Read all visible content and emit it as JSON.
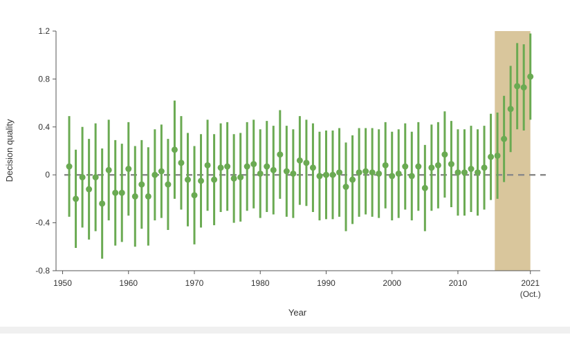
{
  "chart_data": {
    "type": "errorbar",
    "x_label": "Year",
    "y_label": "Decision quality",
    "x": [
      1951,
      1952,
      1953,
      1954,
      1955,
      1956,
      1957,
      1958,
      1959,
      1960,
      1961,
      1962,
      1963,
      1964,
      1965,
      1966,
      1967,
      1968,
      1969,
      1970,
      1971,
      1972,
      1973,
      1974,
      1975,
      1976,
      1977,
      1978,
      1979,
      1980,
      1981,
      1982,
      1983,
      1984,
      1985,
      1986,
      1987,
      1988,
      1989,
      1990,
      1991,
      1992,
      1993,
      1994,
      1995,
      1996,
      1997,
      1998,
      1999,
      2000,
      2001,
      2002,
      2003,
      2004,
      2005,
      2006,
      2007,
      2008,
      2009,
      2010,
      2011,
      2012,
      2013,
      2014,
      2015,
      2016,
      2017,
      2018,
      2019,
      2020,
      2021
    ],
    "values": [
      0.07,
      -0.2,
      -0.02,
      -0.12,
      -0.02,
      -0.24,
      0.04,
      -0.15,
      -0.15,
      0.05,
      -0.18,
      -0.08,
      -0.18,
      0.0,
      0.03,
      -0.08,
      0.21,
      0.1,
      -0.04,
      -0.17,
      -0.05,
      0.08,
      -0.04,
      0.06,
      0.07,
      -0.03,
      -0.02,
      0.07,
      0.09,
      0.01,
      0.07,
      0.04,
      0.17,
      0.03,
      0.01,
      0.12,
      0.1,
      0.06,
      -0.01,
      0.0,
      0.0,
      0.02,
      -0.1,
      -0.04,
      0.02,
      0.03,
      0.02,
      0.01,
      0.08,
      -0.01,
      0.01,
      0.07,
      -0.01,
      0.07,
      -0.11,
      0.06,
      0.08,
      0.17,
      0.09,
      0.02,
      0.02,
      0.05,
      0.02,
      0.06,
      0.15,
      0.16,
      0.3,
      0.55,
      0.74,
      0.73,
      0.82
    ],
    "errors": [
      0.42,
      0.41,
      0.42,
      0.42,
      0.45,
      0.46,
      0.42,
      0.44,
      0.41,
      0.39,
      0.42,
      0.37,
      0.41,
      0.38,
      0.39,
      0.38,
      0.41,
      0.39,
      0.39,
      0.41,
      0.39,
      0.38,
      0.38,
      0.37,
      0.37,
      0.37,
      0.37,
      0.37,
      0.37,
      0.37,
      0.38,
      0.37,
      0.37,
      0.38,
      0.37,
      0.37,
      0.36,
      0.37,
      0.37,
      0.37,
      0.37,
      0.37,
      0.37,
      0.37,
      0.37,
      0.36,
      0.37,
      0.37,
      0.36,
      0.37,
      0.37,
      0.36,
      0.37,
      0.37,
      0.36,
      0.36,
      0.36,
      0.36,
      0.36,
      0.36,
      0.36,
      0.36,
      0.36,
      0.35,
      0.36,
      0.36,
      0.36,
      0.36,
      0.36,
      0.36,
      0.36
    ],
    "color": "#6aaa52",
    "xlim": [
      1949,
      2022.5
    ],
    "ylim": [
      -0.8,
      1.2
    ],
    "xticks": [
      1950,
      1960,
      1970,
      1980,
      1990,
      2000,
      2010,
      2021
    ],
    "yticks": [
      -0.8,
      -0.4,
      0,
      0.4,
      0.8,
      1.2
    ],
    "xtick_note": "(Oct.)",
    "reference_line": {
      "value": 0,
      "color": "#8a8a8a"
    },
    "shaded_region": {
      "xlim": [
        2015.6,
        2021
      ],
      "color": "#d9c69c"
    }
  }
}
